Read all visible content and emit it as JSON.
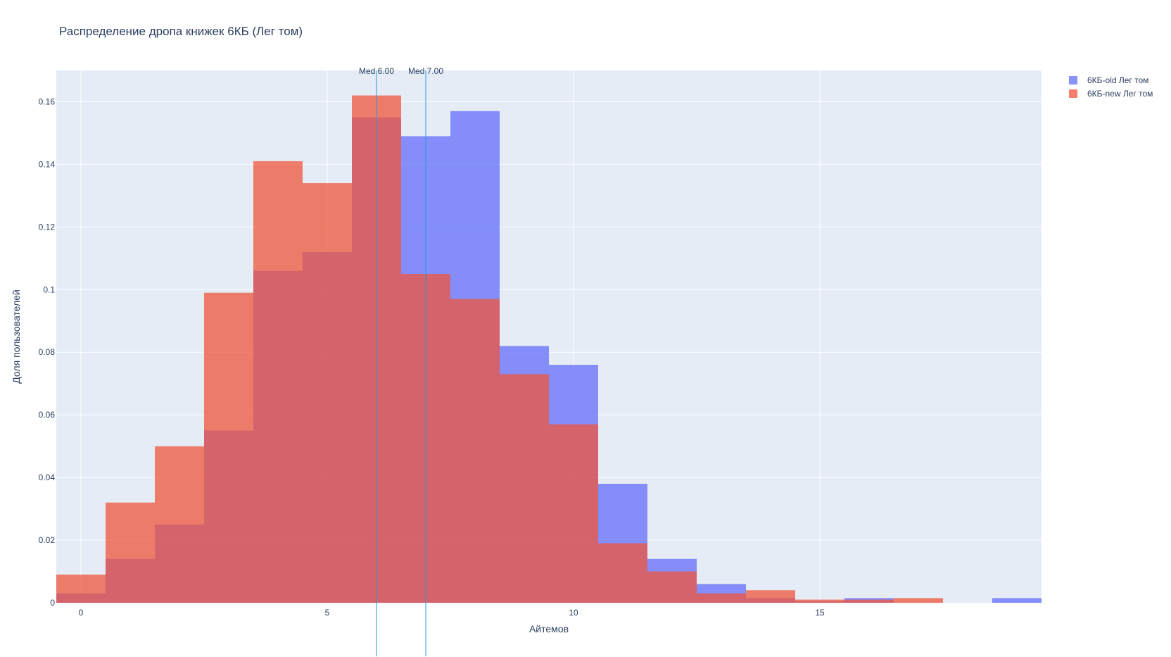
{
  "chart_data": {
    "type": "bar",
    "title": "Распределение дропа книжек 6КБ (Лег том)",
    "xlabel": "Айтемов",
    "ylabel": "Доля пользователей",
    "xlim": [
      -0.5,
      19.5
    ],
    "ylim": [
      0,
      0.17
    ],
    "x_ticks": [
      0,
      5,
      10,
      15
    ],
    "y_ticks": [
      0,
      0.02,
      0.04,
      0.06,
      0.08,
      0.1,
      0.12,
      0.14,
      0.16
    ],
    "y_tick_labels": [
      "0",
      "0.02",
      "0.04",
      "0.06",
      "0.08",
      "0.1",
      "0.12",
      "0.14",
      "0.16"
    ],
    "grid": true,
    "legend_position": "top-right",
    "x": [
      0,
      1,
      2,
      3,
      4,
      5,
      6,
      7,
      8,
      9,
      10,
      11,
      12,
      13,
      14,
      15,
      16,
      17,
      18,
      19
    ],
    "series": [
      {
        "name": "6КБ-old Лег том",
        "color": "#636efa",
        "values": [
          0.003,
          0.014,
          0.025,
          0.055,
          0.106,
          0.112,
          0.155,
          0.149,
          0.157,
          0.082,
          0.076,
          0.038,
          0.014,
          0.006,
          0.0015,
          0.0005,
          0.0015,
          0,
          0,
          0.0015
        ]
      },
      {
        "name": "6КБ-new Лег том",
        "color": "#ef553b",
        "values": [
          0.009,
          0.032,
          0.05,
          0.099,
          0.141,
          0.134,
          0.162,
          0.105,
          0.097,
          0.073,
          0.057,
          0.019,
          0.01,
          0.003,
          0.004,
          0.001,
          0.001,
          0.0015,
          0,
          0
        ]
      }
    ],
    "annotations": [
      {
        "x": 6,
        "label": "Med 6.00",
        "color": "#1f9bd9"
      },
      {
        "x": 7,
        "label": "Med 7.00",
        "color": "#1f9bd9"
      }
    ]
  }
}
